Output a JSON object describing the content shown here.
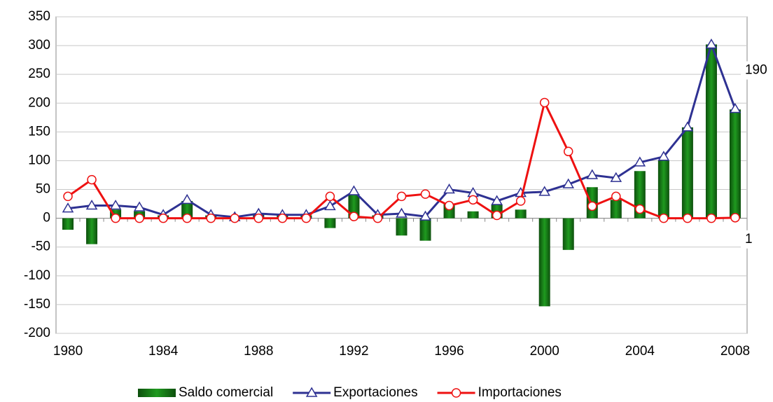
{
  "chart_data": {
    "type": "bar_line",
    "categories": [
      "1980",
      null,
      null,
      null,
      "1984",
      null,
      null,
      null,
      "1988",
      null,
      null,
      null,
      "1992",
      null,
      null,
      null,
      "1996",
      null,
      null,
      null,
      "2000",
      null,
      null,
      null,
      "2004",
      null,
      null,
      null,
      "2008"
    ],
    "series": [
      {
        "name": "Saldo comercial",
        "type": "bar",
        "color": "#1a8a1a",
        "values": [
          -20,
          -45,
          15,
          12,
          5,
          30,
          5,
          2,
          8,
          5,
          5,
          -17,
          42,
          5,
          -30,
          -39,
          25,
          12,
          24,
          15,
          -153,
          -55,
          54,
          32,
          82,
          100,
          158,
          302,
          189
        ]
      },
      {
        "name": "Exportaciones",
        "type": "line",
        "marker": "triangle",
        "color": "#2e3192",
        "label_last": true,
        "values": [
          17,
          22,
          22,
          19,
          6,
          32,
          6,
          2,
          8,
          6,
          6,
          21,
          47,
          6,
          8,
          3,
          50,
          44,
          30,
          44,
          46,
          59,
          75,
          70,
          97,
          107,
          158,
          302,
          190
        ]
      },
      {
        "name": "Importaciones",
        "type": "line",
        "marker": "circle",
        "color": "#ee1111",
        "label_last": true,
        "values": [
          38,
          67,
          0,
          0,
          0,
          0,
          0,
          0,
          0,
          0,
          0,
          38,
          3,
          0,
          38,
          42,
          22,
          32,
          5,
          30,
          201,
          116,
          21,
          38,
          16,
          0,
          0,
          0,
          1
        ]
      }
    ],
    "ylim": [
      -200,
      350
    ],
    "yticks": [
      -200,
      -150,
      -100,
      -50,
      0,
      50,
      100,
      150,
      200,
      250,
      300,
      350
    ],
    "grid": true,
    "legend": "bottom"
  }
}
